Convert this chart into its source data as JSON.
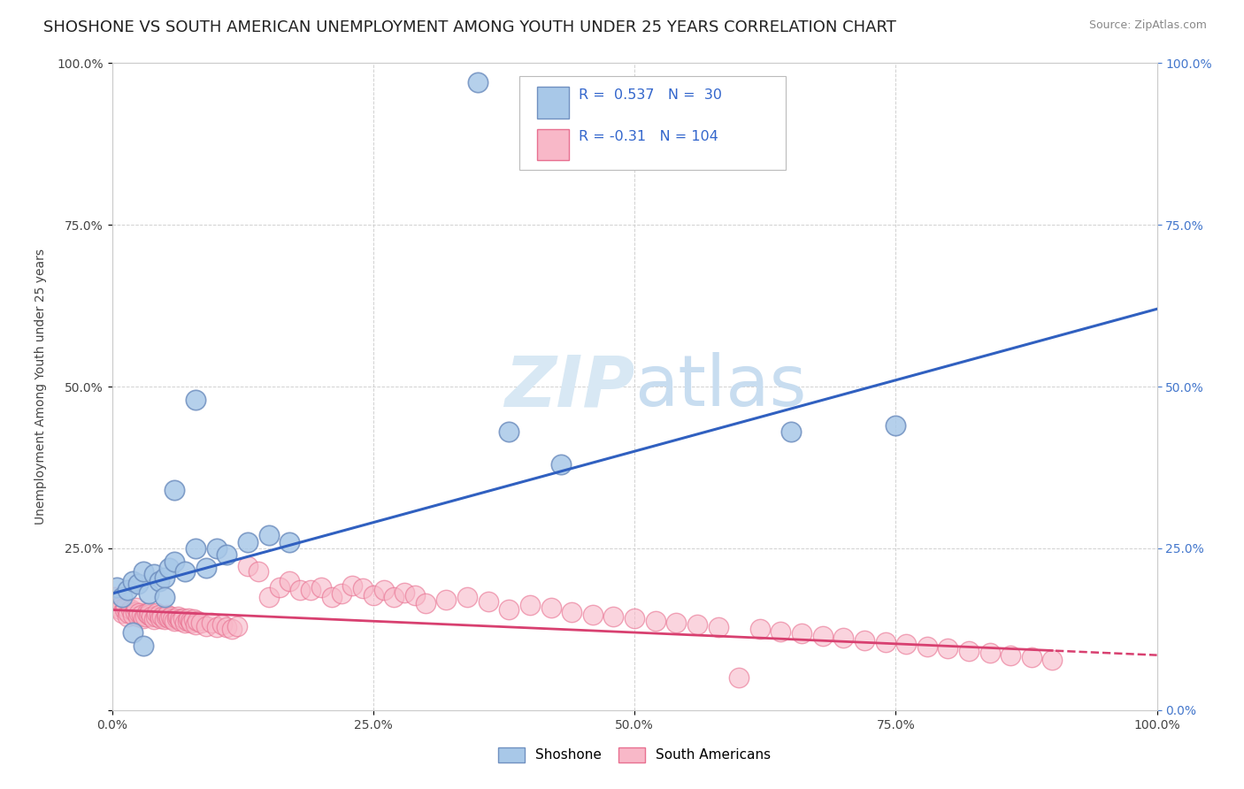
{
  "title": "SHOSHONE VS SOUTH AMERICAN UNEMPLOYMENT AMONG YOUTH UNDER 25 YEARS CORRELATION CHART",
  "source_text": "Source: ZipAtlas.com",
  "ylabel": "Unemployment Among Youth under 25 years",
  "xlim": [
    0,
    1
  ],
  "ylim": [
    0,
    1
  ],
  "xticks": [
    0.0,
    0.25,
    0.5,
    0.75,
    1.0
  ],
  "xticklabels": [
    "0.0%",
    "25.0%",
    "50.0%",
    "75.0%",
    "100.0%"
  ],
  "yticks": [
    0.0,
    0.25,
    0.5,
    0.75,
    1.0
  ],
  "yticklabels": [
    "",
    "25.0%",
    "50.0%",
    "75.0%",
    "100.0%"
  ],
  "yticklabels_right": [
    "0.0%",
    "25.0%",
    "50.0%",
    "75.0%",
    "100.0%"
  ],
  "shoshone_R": 0.537,
  "shoshone_N": 30,
  "south_american_R": -0.31,
  "south_american_N": 104,
  "shoshone_color": "#a8c8e8",
  "south_american_color": "#f8b8c8",
  "shoshone_edge_color": "#7090c0",
  "south_american_edge_color": "#e87090",
  "shoshone_line_color": "#3060c0",
  "south_american_line_color": "#d84070",
  "background_color": "#ffffff",
  "watermark_color": "#d8e8f4",
  "legend_shoshone": "Shoshone",
  "legend_south_american": "South Americans",
  "title_fontsize": 13,
  "axis_label_fontsize": 10,
  "tick_fontsize": 10,
  "shoshone_x": [
    0.005,
    0.01,
    0.015,
    0.02,
    0.025,
    0.03,
    0.035,
    0.04,
    0.045,
    0.05,
    0.055,
    0.06,
    0.07,
    0.08,
    0.09,
    0.1,
    0.11,
    0.13,
    0.15,
    0.17,
    0.06,
    0.08,
    0.35,
    0.38,
    0.43,
    0.65,
    0.75,
    0.05,
    0.02,
    0.03
  ],
  "shoshone_y": [
    0.19,
    0.175,
    0.185,
    0.2,
    0.195,
    0.215,
    0.18,
    0.21,
    0.2,
    0.205,
    0.22,
    0.23,
    0.215,
    0.25,
    0.22,
    0.25,
    0.24,
    0.26,
    0.27,
    0.26,
    0.34,
    0.48,
    0.97,
    0.43,
    0.38,
    0.43,
    0.44,
    0.175,
    0.12,
    0.1
  ],
  "south_american_x": [
    0.003,
    0.005,
    0.007,
    0.008,
    0.01,
    0.012,
    0.013,
    0.015,
    0.016,
    0.018,
    0.02,
    0.022,
    0.023,
    0.025,
    0.026,
    0.028,
    0.03,
    0.032,
    0.033,
    0.035,
    0.036,
    0.038,
    0.04,
    0.042,
    0.043,
    0.045,
    0.046,
    0.048,
    0.05,
    0.052,
    0.053,
    0.055,
    0.056,
    0.058,
    0.06,
    0.062,
    0.063,
    0.065,
    0.066,
    0.068,
    0.07,
    0.072,
    0.073,
    0.075,
    0.076,
    0.078,
    0.08,
    0.082,
    0.085,
    0.09,
    0.095,
    0.1,
    0.105,
    0.11,
    0.115,
    0.12,
    0.13,
    0.14,
    0.15,
    0.16,
    0.17,
    0.18,
    0.19,
    0.2,
    0.21,
    0.22,
    0.23,
    0.24,
    0.25,
    0.26,
    0.27,
    0.28,
    0.29,
    0.3,
    0.32,
    0.34,
    0.36,
    0.38,
    0.4,
    0.42,
    0.44,
    0.46,
    0.48,
    0.5,
    0.52,
    0.54,
    0.56,
    0.58,
    0.6,
    0.62,
    0.64,
    0.66,
    0.68,
    0.7,
    0.72,
    0.74,
    0.76,
    0.78,
    0.8,
    0.82,
    0.84,
    0.86,
    0.88,
    0.9
  ],
  "south_american_y": [
    0.175,
    0.165,
    0.16,
    0.155,
    0.15,
    0.155,
    0.16,
    0.145,
    0.15,
    0.155,
    0.148,
    0.152,
    0.158,
    0.145,
    0.15,
    0.148,
    0.142,
    0.145,
    0.15,
    0.148,
    0.152,
    0.145,
    0.14,
    0.145,
    0.15,
    0.148,
    0.142,
    0.145,
    0.14,
    0.145,
    0.148,
    0.142,
    0.145,
    0.14,
    0.138,
    0.142,
    0.145,
    0.14,
    0.138,
    0.142,
    0.135,
    0.138,
    0.142,
    0.138,
    0.135,
    0.14,
    0.132,
    0.138,
    0.135,
    0.13,
    0.135,
    0.128,
    0.132,
    0.128,
    0.125,
    0.13,
    0.222,
    0.215,
    0.175,
    0.19,
    0.2,
    0.185,
    0.185,
    0.19,
    0.175,
    0.18,
    0.192,
    0.188,
    0.178,
    0.185,
    0.175,
    0.182,
    0.178,
    0.165,
    0.17,
    0.175,
    0.168,
    0.155,
    0.162,
    0.158,
    0.152,
    0.148,
    0.145,
    0.142,
    0.138,
    0.135,
    0.132,
    0.128,
    0.05,
    0.125,
    0.122,
    0.118,
    0.115,
    0.112,
    0.108,
    0.105,
    0.102,
    0.098,
    0.095,
    0.092,
    0.088,
    0.085,
    0.082,
    0.078
  ]
}
